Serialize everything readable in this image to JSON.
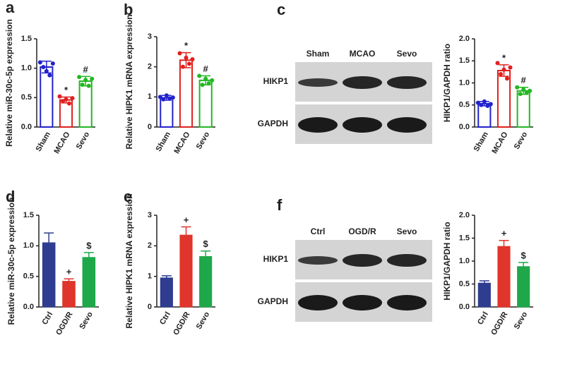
{
  "chart_data": [
    {
      "type": "bar",
      "panel": "a",
      "style": "open",
      "ylabel": "Relative miR-30c-5p expression",
      "categories": [
        "Sham",
        "MCAO",
        "Sevo"
      ],
      "values": [
        1.02,
        0.46,
        0.78
      ],
      "errors": [
        0.1,
        0.05,
        0.08
      ],
      "colors": [
        "#2222cc",
        "#e0201e",
        "#22b822"
      ],
      "points": [
        [
          1.1,
          1.02,
          0.95,
          0.88,
          1.08
        ],
        [
          0.52,
          0.44,
          0.47,
          0.4,
          0.49
        ],
        [
          0.85,
          0.72,
          0.8,
          0.7,
          0.82
        ]
      ],
      "annotations": [
        null,
        "*",
        "#"
      ],
      "ylim": [
        0,
        1.5
      ],
      "yticks": [
        {
          "value": 0,
          "label": "0.0"
        },
        0.5,
        {
          "value": 1,
          "label": "1.0"
        },
        1.5
      ]
    },
    {
      "type": "bar",
      "panel": "b",
      "style": "open",
      "ylabel": "Relative HIPK1 mRNA expression",
      "categories": [
        "Sham",
        "MCAO",
        "Sevo"
      ],
      "values": [
        0.97,
        2.22,
        1.55
      ],
      "errors": [
        0.08,
        0.25,
        0.15
      ],
      "colors": [
        "#2222cc",
        "#e0201e",
        "#22b822"
      ],
      "points": [
        [
          1.0,
          0.92,
          1.05,
          0.95,
          0.98
        ],
        [
          2.45,
          2.0,
          2.3,
          2.1,
          2.25
        ],
        [
          1.7,
          1.4,
          1.6,
          1.45,
          1.55
        ]
      ],
      "annotations": [
        null,
        "*",
        "#"
      ],
      "ylim": [
        0,
        3
      ],
      "yticks": [
        0,
        1,
        2,
        3
      ]
    },
    {
      "type": "bar",
      "style": "open",
      "ylabel": "HIKP1/GAPDH ratio",
      "categories": [
        "Sham",
        "MCAO",
        "Sevo"
      ],
      "values": [
        0.53,
        1.28,
        0.82
      ],
      "errors": [
        0.05,
        0.13,
        0.08
      ],
      "colors": [
        "#2222cc",
        "#e0201e",
        "#22b822"
      ],
      "points": [
        [
          0.55,
          0.5,
          0.58,
          0.48,
          0.52
        ],
        [
          1.45,
          1.2,
          1.3,
          1.1,
          1.35
        ],
        [
          0.9,
          0.75,
          0.85,
          0.78,
          0.82
        ]
      ],
      "annotations": [
        null,
        "*",
        "#"
      ],
      "ylim": [
        0,
        2
      ],
      "yticks": [
        {
          "value": 0,
          "label": "0.0"
        },
        0.5,
        {
          "value": 1,
          "label": "1.0"
        },
        1.5,
        {
          "value": 2,
          "label": "2.0"
        }
      ]
    },
    {
      "type": "bar",
      "panel": "d",
      "style": "filled",
      "ylabel": "Relative miR-30c-5p expression",
      "categories": [
        "Ctrl",
        "OGD/R",
        "Sevo"
      ],
      "values": [
        1.05,
        0.42,
        0.81
      ],
      "errors": [
        0.16,
        0.04,
        0.08
      ],
      "colors": [
        "#2e3d8f",
        "#e0352b",
        "#1fa84a"
      ],
      "annotations": [
        null,
        "+",
        "$"
      ],
      "ylim": [
        0,
        1.5
      ],
      "yticks": [
        {
          "value": 0,
          "label": "0.0"
        },
        0.5,
        {
          "value": 1,
          "label": "1.0"
        },
        1.5
      ]
    },
    {
      "type": "bar",
      "panel": "e",
      "style": "filled",
      "ylabel": "Relative HIPK1 mRNA expression",
      "categories": [
        "Ctrl",
        "OGD/R",
        "Sevo"
      ],
      "values": [
        0.95,
        2.35,
        1.65
      ],
      "errors": [
        0.07,
        0.27,
        0.18
      ],
      "colors": [
        "#2e3d8f",
        "#e0352b",
        "#1fa84a"
      ],
      "annotations": [
        null,
        "+",
        "$"
      ],
      "ylim": [
        0,
        3
      ],
      "yticks": [
        0,
        1,
        2,
        3
      ]
    },
    {
      "type": "bar",
      "style": "filled",
      "ylabel": "HIKP1/GAPDH ratio",
      "categories": [
        "Ctrl",
        "OGD/R",
        "Sevo"
      ],
      "values": [
        0.52,
        1.32,
        0.88
      ],
      "errors": [
        0.05,
        0.13,
        0.09
      ],
      "colors": [
        "#2e3d8f",
        "#e0352b",
        "#1fa84a"
      ],
      "annotations": [
        null,
        "+",
        "$"
      ],
      "ylim": [
        0,
        2
      ],
      "yticks": [
        {
          "value": 0,
          "label": "0.0"
        },
        0.5,
        {
          "value": 1,
          "label": "1.0"
        },
        1.5,
        {
          "value": 2,
          "label": "2.0"
        }
      ]
    }
  ],
  "blots": [
    {
      "panel": "c",
      "lanes": [
        "Sham",
        "MCAO",
        "Sevo"
      ],
      "rows": [
        "HIKP1",
        "GAPDH"
      ]
    },
    {
      "panel": "f",
      "lanes": [
        "Ctrl",
        "OGD/R",
        "Sevo"
      ],
      "rows": [
        "HIKP1",
        "GAPDH"
      ]
    }
  ]
}
